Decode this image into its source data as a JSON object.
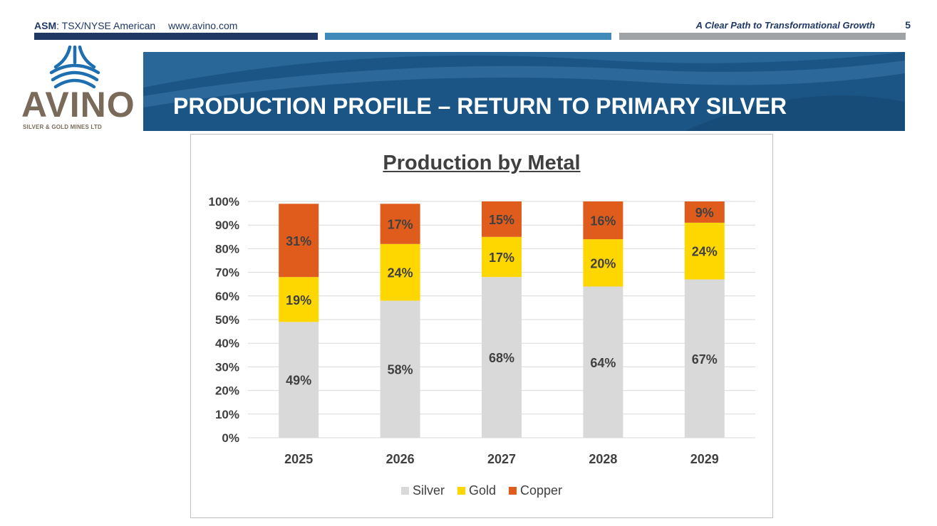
{
  "header": {
    "ticker_bold": "ASM",
    "ticker_rest": ": TSX/NYSE American",
    "website": "www.avino.com",
    "tagline": "A Clear Path to Transformational Growth",
    "page_number": "5"
  },
  "logo": {
    "wordmark": "AVINO",
    "subtitle": "SILVER & GOLD MINES LTD"
  },
  "banner": {
    "title": "PRODUCTION PROFILE – RETURN TO PRIMARY SILVER"
  },
  "chart_data": {
    "type": "bar",
    "stacked": true,
    "title": "Production by Metal",
    "categories": [
      "2025",
      "2026",
      "2027",
      "2028",
      "2029"
    ],
    "y_tick_labels": [
      "0%",
      "10%",
      "20%",
      "30%",
      "40%",
      "50%",
      "60%",
      "70%",
      "80%",
      "90%",
      "100%"
    ],
    "ylim": [
      0,
      100
    ],
    "grid": true,
    "legend_position": "bottom",
    "series": [
      {
        "name": "Silver",
        "values": [
          49,
          58,
          68,
          64,
          67
        ],
        "labels": [
          "49%",
          "58%",
          "68%",
          "64%",
          "67%"
        ],
        "color": "#d9d9d9"
      },
      {
        "name": "Gold",
        "values": [
          19,
          24,
          17,
          20,
          24
        ],
        "labels": [
          "19%",
          "24%",
          "17%",
          "20%",
          "24%"
        ],
        "color": "#ffd700"
      },
      {
        "name": "Copper",
        "values": [
          31,
          17,
          15,
          16,
          9
        ],
        "labels": [
          "31%",
          "17%",
          "15%",
          "16%",
          "9%"
        ],
        "color": "#e05c1c"
      }
    ]
  },
  "colors": {
    "navy": "#1f3864",
    "banner_blue": "#1d5a8c",
    "logo_brown": "#7a6a5a"
  }
}
